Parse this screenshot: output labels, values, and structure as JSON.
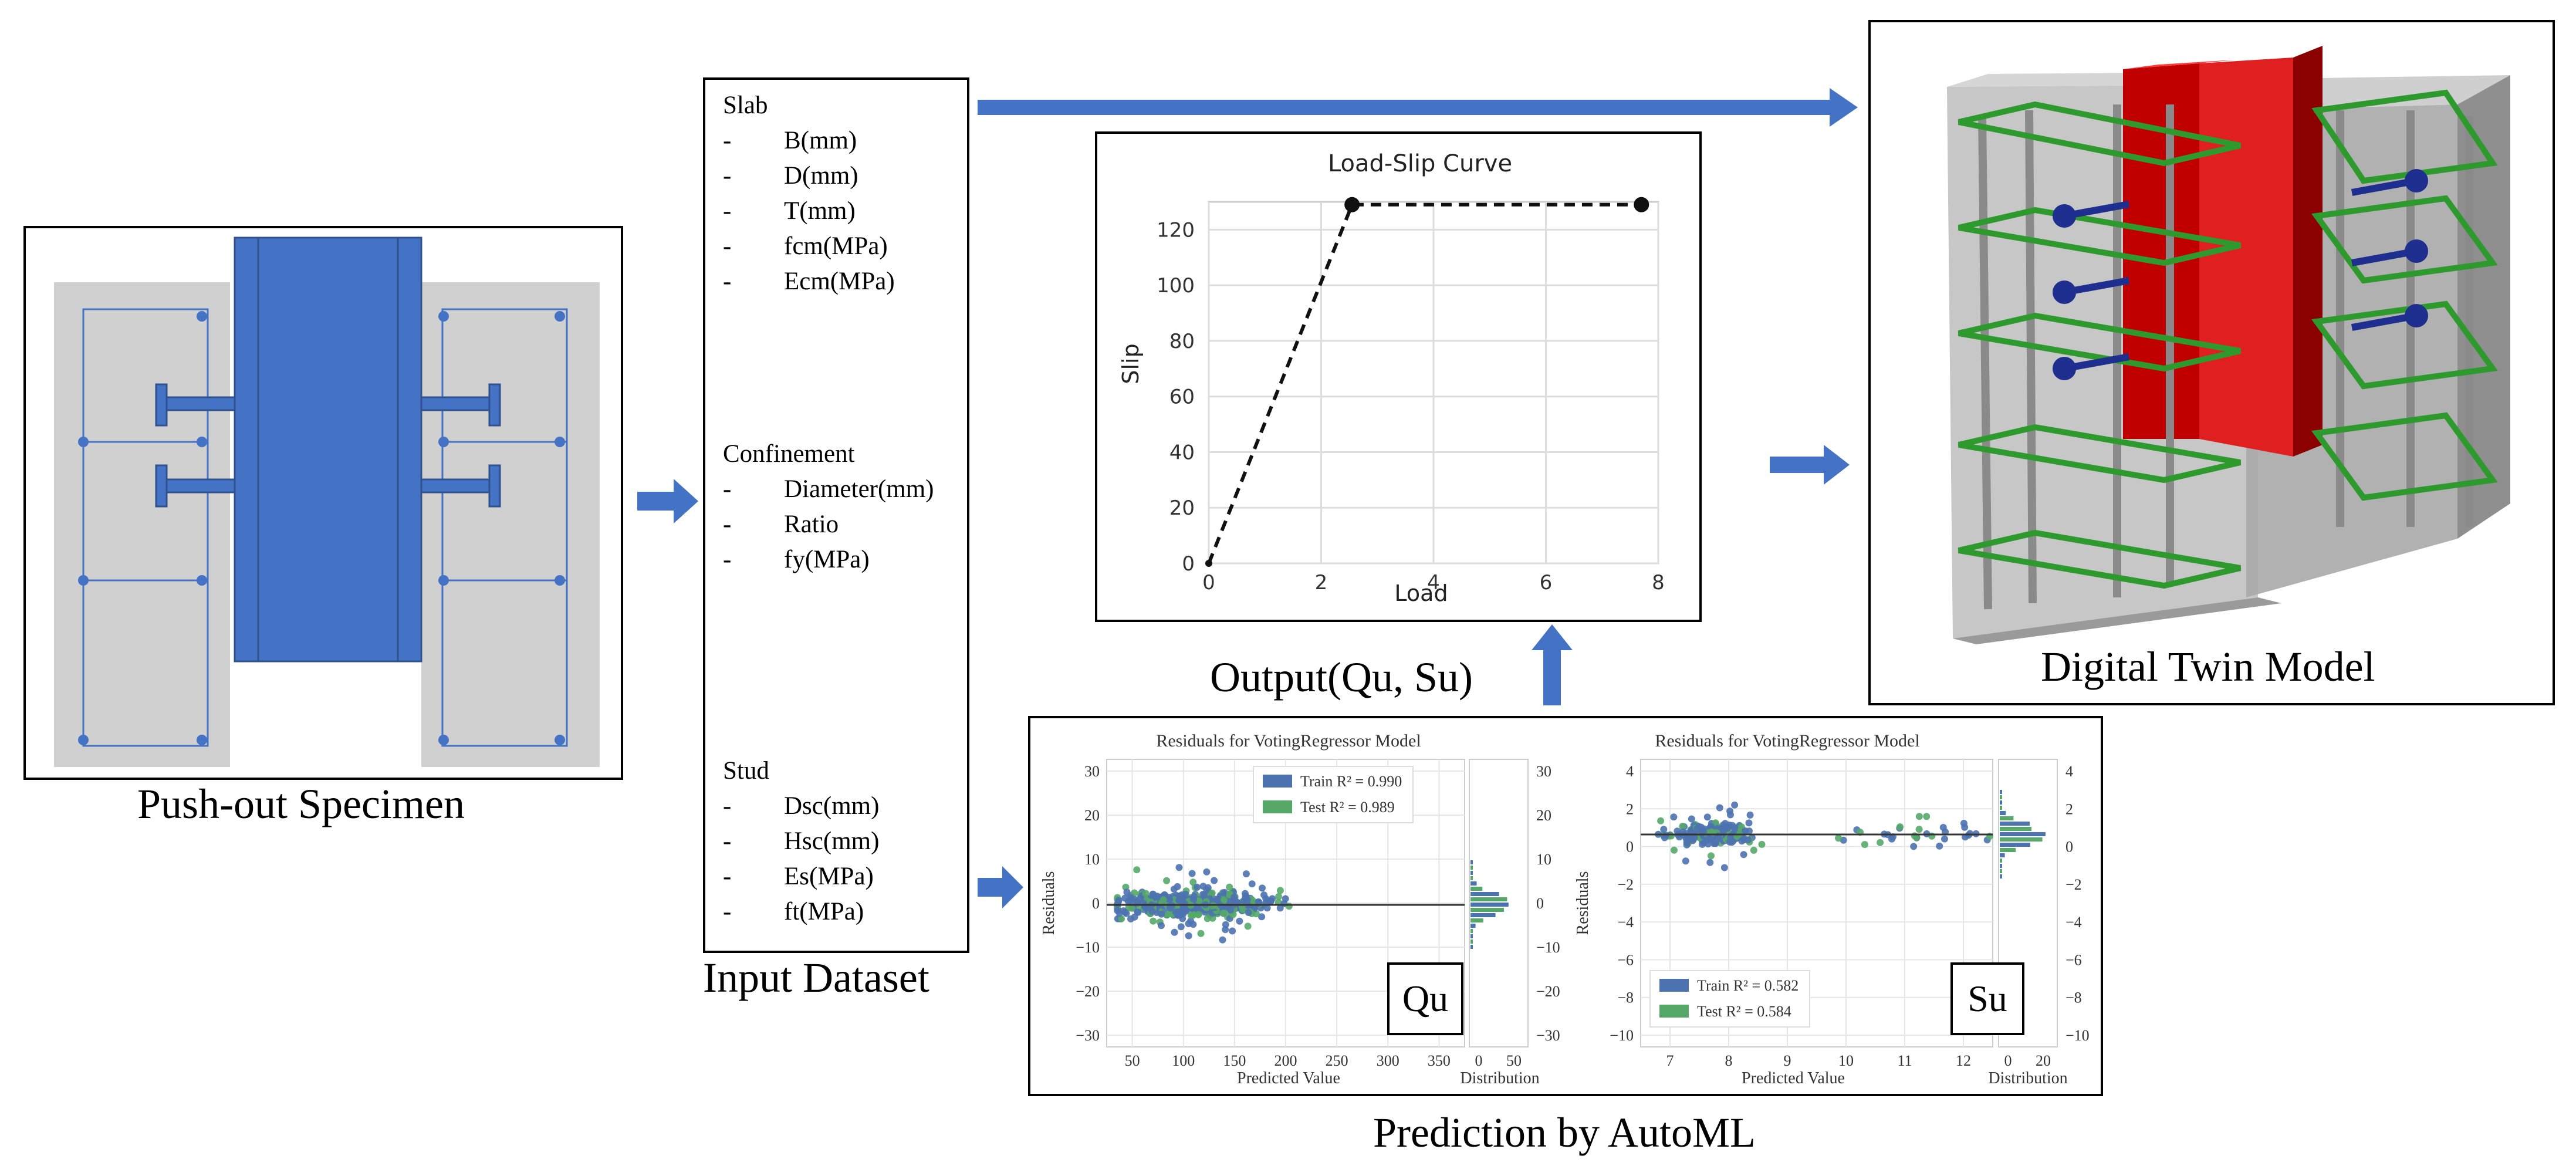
{
  "specimen": {
    "caption": "Push-out Specimen"
  },
  "input_dataset": {
    "caption": "Input Dataset",
    "groups": [
      {
        "heading": "Slab",
        "items": [
          "B(mm)",
          "D(mm)",
          "T(mm)",
          "fcm(MPa)",
          "Ecm(MPa)"
        ]
      },
      {
        "heading": "Confinement",
        "items": [
          "Diameter(mm)",
          "Ratio",
          "fy(MPa)"
        ]
      },
      {
        "heading": "Stud",
        "items": [
          "Dsc(mm)",
          "Hsc(mm)",
          "Es(MPa)",
          "ft(MPa)"
        ]
      }
    ],
    "dash": "-"
  },
  "load_slip": {
    "caption": "Output(Qu, Su)",
    "chart_data": {
      "type": "line",
      "title": "Load-Slip Curve",
      "xlabel": "Load",
      "ylabel": "Slip",
      "xlim": [
        0,
        8
      ],
      "ylim": [
        0,
        130
      ],
      "xticks": [
        0,
        2,
        4,
        6,
        8
      ],
      "yticks": [
        0,
        20,
        40,
        60,
        80,
        100,
        120
      ],
      "series": [
        {
          "name": "Load-Slip",
          "x": [
            0,
            2.55,
            7.7
          ],
          "y": [
            0,
            129,
            129
          ]
        }
      ]
    }
  },
  "automl": {
    "caption": "Prediction by AutoML",
    "qu": {
      "label": "Qu",
      "title": "Residuals for VotingRegressor Model",
      "xlabel": "Predicted Value",
      "ylabel": "Residuals",
      "dist_label": "Distribution",
      "train_label": "Train R² = 0.990",
      "test_label": "Test R² = 0.989",
      "xticks": [
        "50",
        "100",
        "150",
        "200",
        "250",
        "300",
        "350"
      ],
      "yticks": [
        "30",
        "20",
        "10",
        "0",
        "−10",
        "−20",
        "−30"
      ],
      "dist_xticks": [
        "0",
        "50"
      ]
    },
    "su": {
      "label": "Su",
      "title": "Residuals for VotingRegressor Model",
      "xlabel": "Predicted Value",
      "ylabel": "Residuals",
      "dist_label": "Distribution",
      "train_label": "Train R² = 0.582",
      "test_label": "Test R² = 0.584",
      "xticks": [
        "7",
        "8",
        "9",
        "10",
        "11",
        "12"
      ],
      "yticks": [
        "4",
        "2",
        "0",
        "−2",
        "−4",
        "−6",
        "−8",
        "−10"
      ],
      "dist_xticks": [
        "0",
        "20"
      ]
    }
  },
  "digital_twin": {
    "caption": "Digital Twin Model"
  },
  "colors": {
    "arrow": "#4472c4",
    "steel_blue": "#4472c4",
    "concrete": "#d0d0d0",
    "train": "#4c72b0",
    "test": "#55a868",
    "red_beam": "#c00000",
    "rebar_green": "#2e9a2e"
  }
}
